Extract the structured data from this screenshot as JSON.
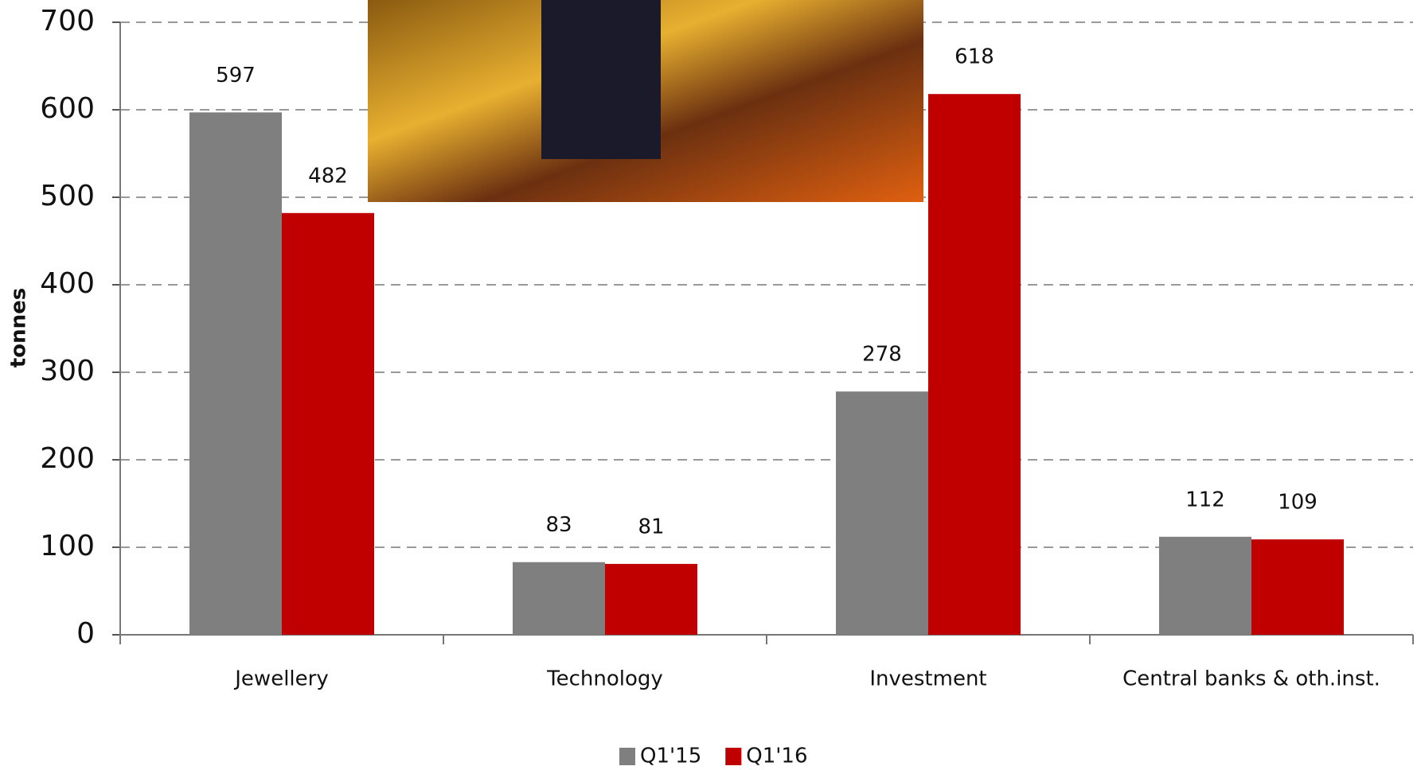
{
  "chart_data": {
    "type": "bar",
    "y_label": "tonnes",
    "categories": [
      "Jewellery",
      "Technology",
      "Investment",
      "Central banks & oth.inst."
    ],
    "series": [
      {
        "name": "Q1'15",
        "color": "#7f7f7f",
        "values": [
          597,
          83,
          278,
          112
        ]
      },
      {
        "name": "Q1'16",
        "color": "#c00000",
        "values": [
          482,
          81,
          618,
          109
        ]
      }
    ],
    "ylim": [
      0,
      700
    ],
    "yticks": [
      0,
      100,
      200,
      300,
      400,
      500,
      600,
      700
    ],
    "grid": true,
    "legend": "bottom"
  }
}
